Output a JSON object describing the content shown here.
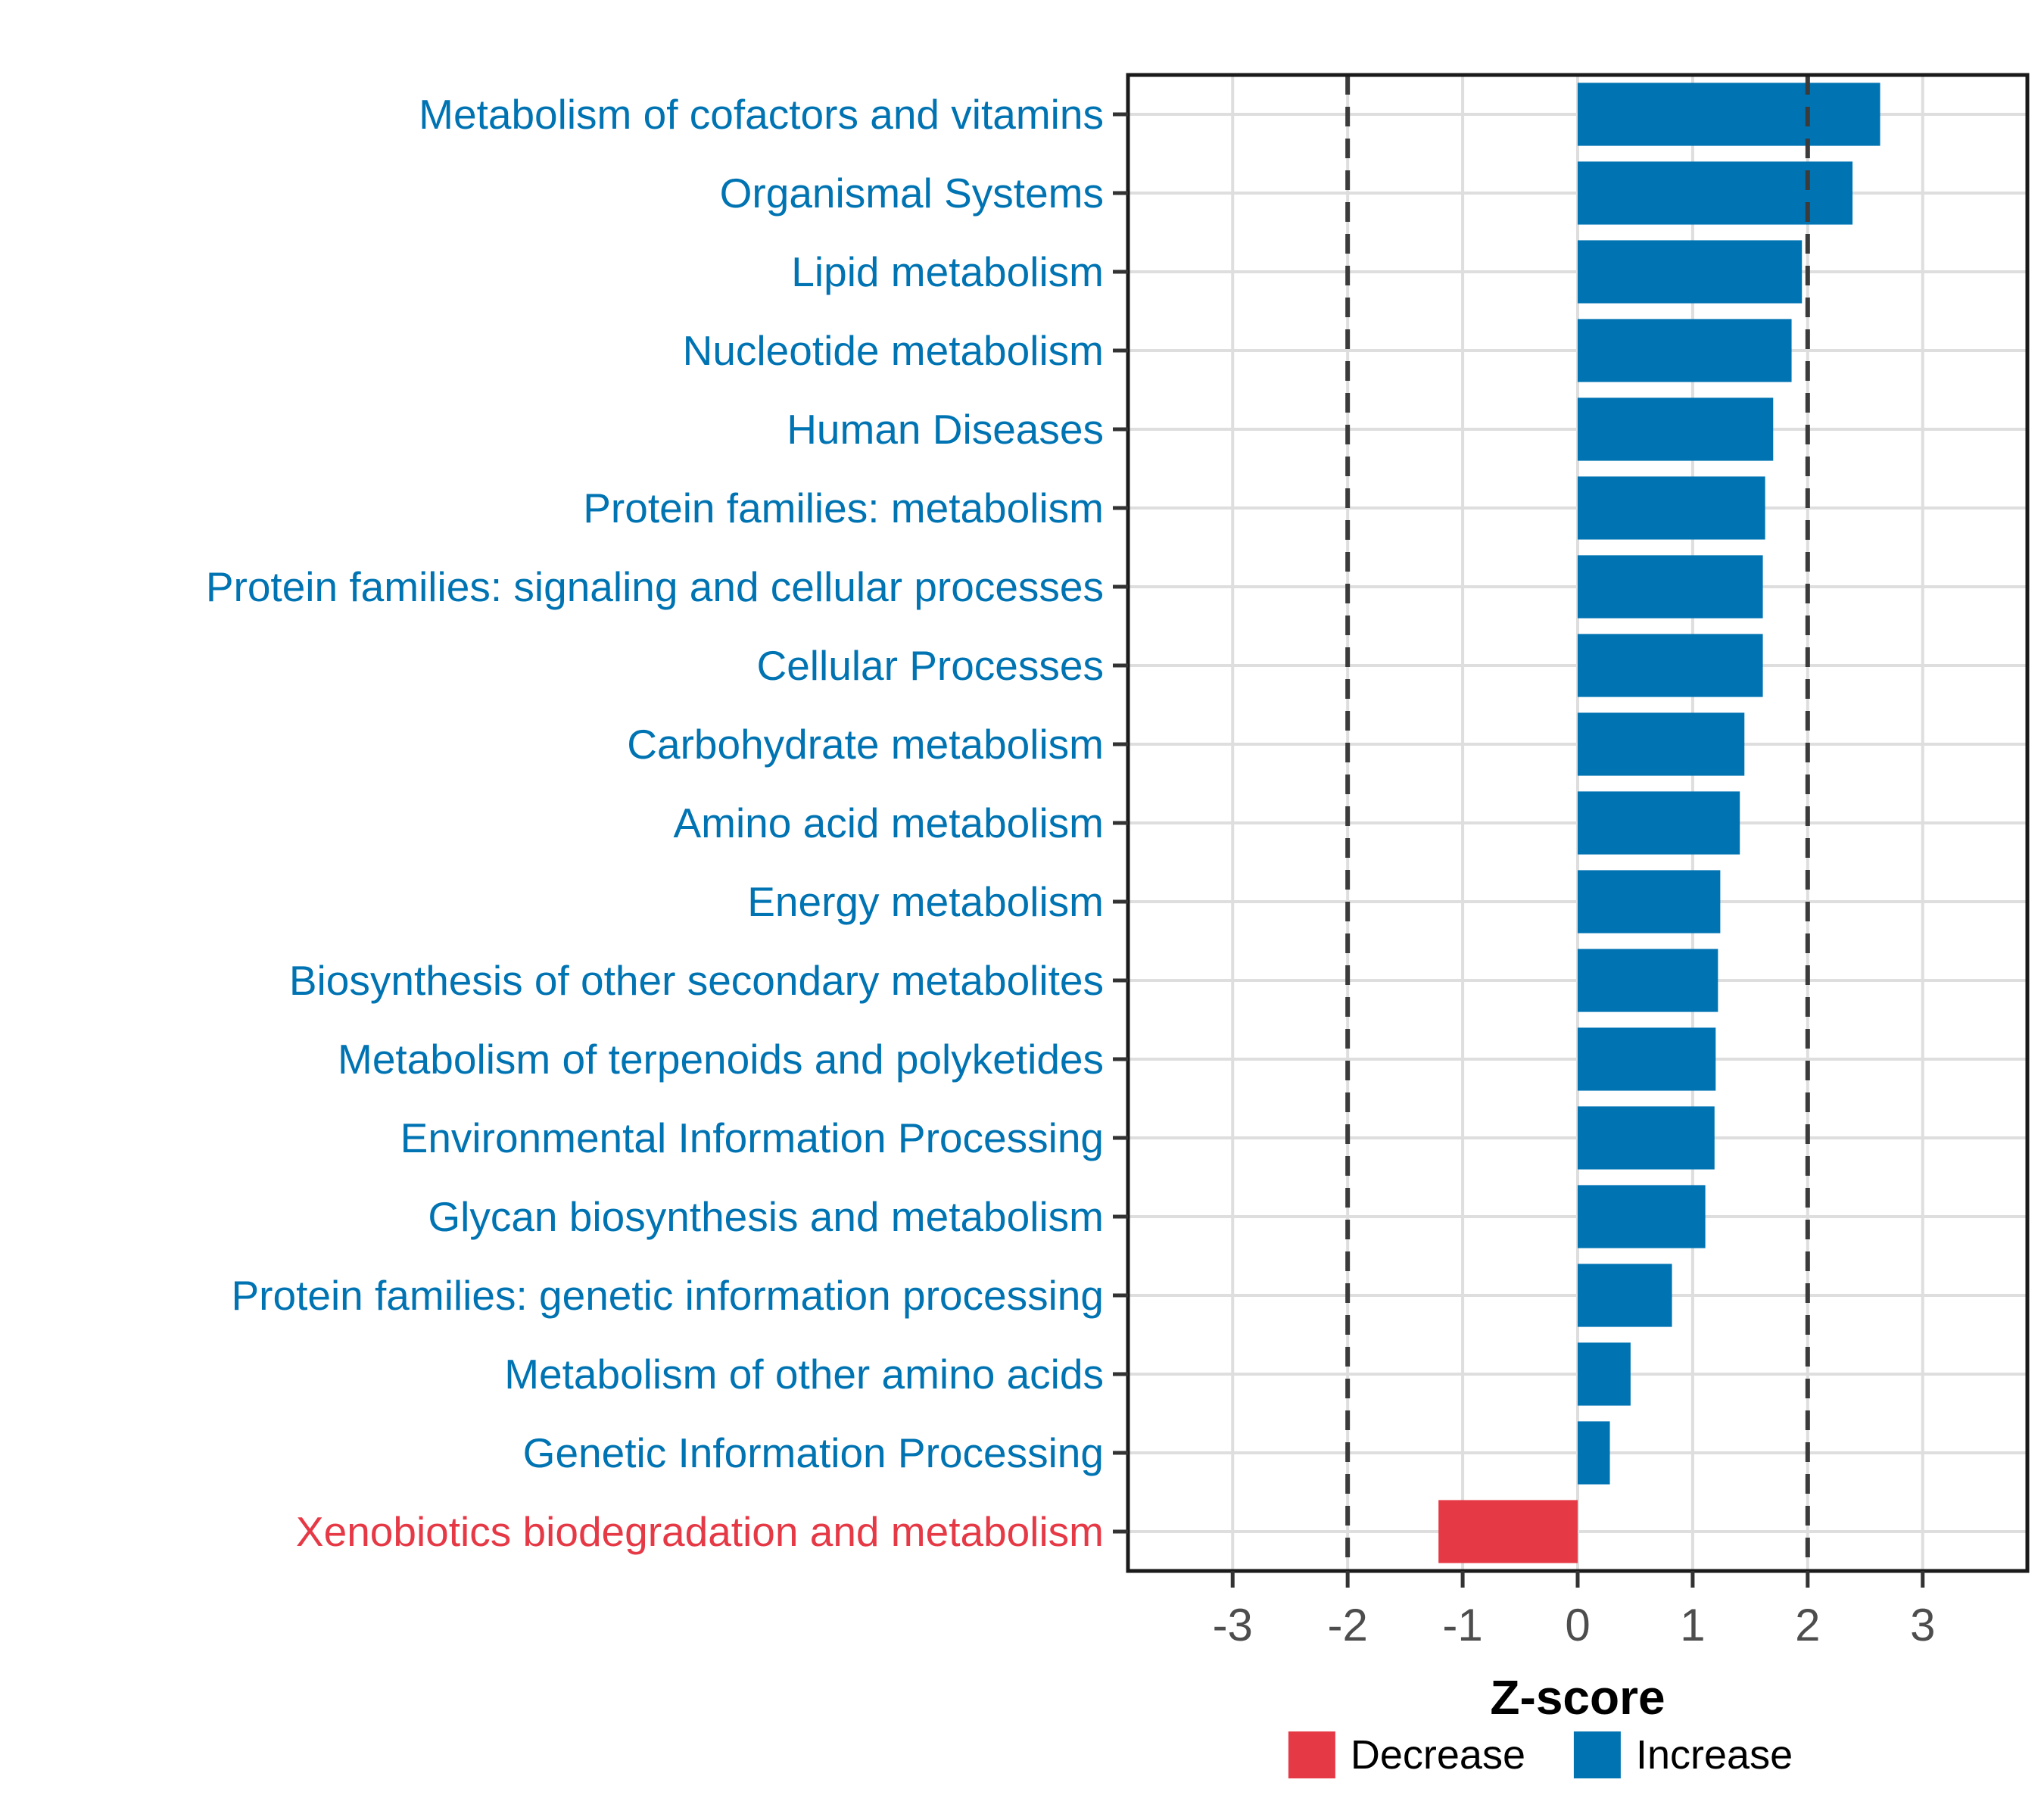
{
  "chart_data": {
    "type": "bar",
    "orientation": "horizontal",
    "title": "",
    "xlabel": "Z-score",
    "ylabel": "",
    "xlim": [
      -3.91,
      3.91
    ],
    "x_ticks": [
      -3,
      -2,
      -1,
      0,
      1,
      2,
      3
    ],
    "dashed_reference_lines": [
      -2,
      2
    ],
    "grid": "on",
    "legend_position": "bottom",
    "bars": [
      {
        "label": "Metabolism of cofactors and vitamins",
        "value": 2.63,
        "direction": "Increase"
      },
      {
        "label": "Organismal Systems",
        "value": 2.39,
        "direction": "Increase"
      },
      {
        "label": "Lipid metabolism",
        "value": 1.95,
        "direction": "Increase"
      },
      {
        "label": "Nucleotide metabolism",
        "value": 1.86,
        "direction": "Increase"
      },
      {
        "label": "Human Diseases",
        "value": 1.7,
        "direction": "Increase"
      },
      {
        "label": "Protein families: metabolism",
        "value": 1.63,
        "direction": "Increase"
      },
      {
        "label": "Protein families: signaling and cellular processes",
        "value": 1.61,
        "direction": "Increase"
      },
      {
        "label": "Cellular Processes",
        "value": 1.61,
        "direction": "Increase"
      },
      {
        "label": "Carbohydrate metabolism",
        "value": 1.45,
        "direction": "Increase"
      },
      {
        "label": "Amino acid metabolism",
        "value": 1.41,
        "direction": "Increase"
      },
      {
        "label": "Energy metabolism",
        "value": 1.24,
        "direction": "Increase"
      },
      {
        "label": "Biosynthesis of other secondary metabolites",
        "value": 1.22,
        "direction": "Increase"
      },
      {
        "label": "Metabolism of terpenoids and polyketides",
        "value": 1.2,
        "direction": "Increase"
      },
      {
        "label": "Environmental Information Processing",
        "value": 1.19,
        "direction": "Increase"
      },
      {
        "label": "Glycan biosynthesis and metabolism",
        "value": 1.11,
        "direction": "Increase"
      },
      {
        "label": "Protein families: genetic information processing",
        "value": 0.82,
        "direction": "Increase"
      },
      {
        "label": "Metabolism of other amino acids",
        "value": 0.46,
        "direction": "Increase"
      },
      {
        "label": "Genetic Information Processing",
        "value": 0.28,
        "direction": "Increase"
      },
      {
        "label": "Xenobiotics biodegradation and metabolism",
        "value": -1.21,
        "direction": "Decrease"
      }
    ],
    "colors": {
      "Increase": "#0073B2",
      "Decrease": "#E63946"
    }
  },
  "legend": {
    "items": [
      {
        "key": "Decrease",
        "label": "Decrease"
      },
      {
        "key": "Increase",
        "label": "Increase"
      }
    ]
  },
  "axis": {
    "x_title": "Z-score",
    "tick_text_color": "#4D4D4D"
  }
}
